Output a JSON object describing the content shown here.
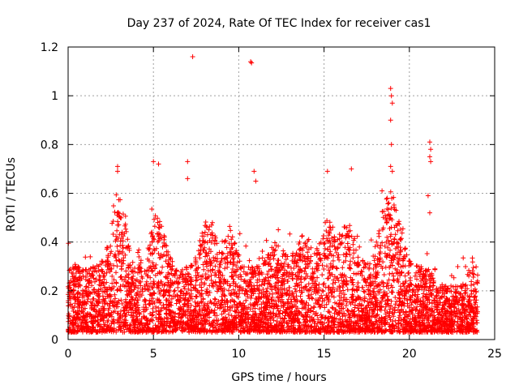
{
  "chart_data": {
    "type": "scatter",
    "title": "Day 237 of 2024, Rate Of TEC Index for receiver cas1",
    "xlabel": "GPS time / hours",
    "ylabel": "ROTI / TECUs",
    "xlim": [
      0,
      25
    ],
    "ylim": [
      0,
      1.2
    ],
    "x_ticks": [
      0,
      5,
      10,
      15,
      20,
      25
    ],
    "x_tick_labels": [
      "0",
      "5",
      "10",
      "15",
      "20",
      "25"
    ],
    "y_ticks": [
      0,
      0.2,
      0.4,
      0.6,
      0.8,
      1.0,
      1.2
    ],
    "y_tick_labels": [
      "0",
      "0.2",
      "0.4",
      "0.6",
      "0.8",
      "1",
      "1.2"
    ],
    "grid": true,
    "marker": "plus",
    "color": "#ff0000",
    "series": [
      {
        "name": "ROTI",
        "x_range": [
          0,
          24
        ],
        "baseline_band": [
          0.03,
          0.3
        ],
        "notable_points": [
          {
            "x": 7.3,
            "y": 1.16
          },
          {
            "x": 10.7,
            "y": 1.14
          },
          {
            "x": 10.75,
            "y": 1.135
          },
          {
            "x": 18.9,
            "y": 1.03
          },
          {
            "x": 18.95,
            "y": 1.0
          },
          {
            "x": 19.0,
            "y": 0.97
          },
          {
            "x": 18.9,
            "y": 0.9
          },
          {
            "x": 18.95,
            "y": 0.8
          },
          {
            "x": 18.9,
            "y": 0.71
          },
          {
            "x": 19.0,
            "y": 0.69
          },
          {
            "x": 21.2,
            "y": 0.81
          },
          {
            "x": 21.25,
            "y": 0.78
          },
          {
            "x": 21.2,
            "y": 0.75
          },
          {
            "x": 21.25,
            "y": 0.73
          },
          {
            "x": 2.9,
            "y": 0.71
          },
          {
            "x": 2.9,
            "y": 0.69
          },
          {
            "x": 5.0,
            "y": 0.73
          },
          {
            "x": 5.3,
            "y": 0.72
          },
          {
            "x": 7.0,
            "y": 0.73
          },
          {
            "x": 7.0,
            "y": 0.66
          },
          {
            "x": 10.9,
            "y": 0.69
          },
          {
            "x": 11.0,
            "y": 0.65
          },
          {
            "x": 15.2,
            "y": 0.69
          },
          {
            "x": 16.6,
            "y": 0.7
          },
          {
            "x": 21.1,
            "y": 0.59
          },
          {
            "x": 21.2,
            "y": 0.52
          },
          {
            "x": 18.4,
            "y": 0.61
          },
          {
            "x": 18.7,
            "y": 0.58
          }
        ]
      }
    ]
  }
}
